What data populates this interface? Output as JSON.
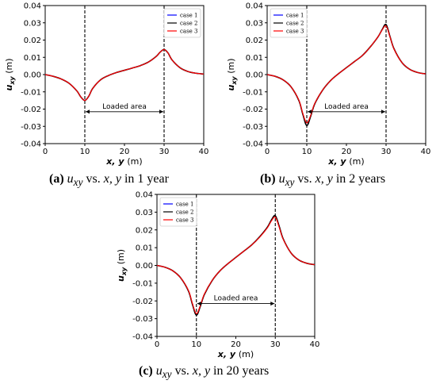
{
  "captions": [
    {
      "letter": "(a)",
      "text": "u_xy vs. x, y in 1 year",
      "pre": "u",
      "sub": "xy",
      "mid": " vs. ",
      "vars": "x, y",
      "post": " in 1 year"
    },
    {
      "letter": "(b)",
      "text": "u_xy vs. x, y in 2 years",
      "pre": "u",
      "sub": "xy",
      "mid": " vs. ",
      "vars": "x, y",
      "post": " in 2 years"
    },
    {
      "letter": "(c)",
      "text": "u_xy vs. x, y in 20 years",
      "pre": "u",
      "sub": "xy",
      "mid": " vs. ",
      "vars": "x, y",
      "post": " in 20 years"
    }
  ],
  "chart_data": [
    {
      "type": "line",
      "xlabel": "x, y",
      "xunit": "(m)",
      "ylabel": "u",
      "ylabel_sub": "xy",
      "yunit": "(m)",
      "xlim": [
        0,
        40
      ],
      "ylim": [
        -0.04,
        0.04
      ],
      "xticks": [
        "0",
        "10",
        "20",
        "30",
        "40"
      ],
      "yticks": [
        "0.04",
        "0.03",
        "0.02",
        "0.01",
        "0.00",
        "-0.01",
        "-0.02",
        "-0.03",
        "-0.04"
      ],
      "legend_position": "top-right",
      "annotation": "Loaded area",
      "vlines": [
        10,
        30
      ],
      "series": [
        {
          "name": "case 1",
          "color": "#0000ff",
          "x": [
            0,
            2,
            4,
            6,
            8,
            9,
            10,
            11,
            12,
            14,
            16,
            18,
            20,
            22,
            24,
            26,
            28,
            29,
            30,
            31,
            32,
            34,
            36,
            38,
            40
          ],
          "y": [
            0.0,
            -0.001,
            -0.0025,
            -0.005,
            -0.0095,
            -0.013,
            -0.015,
            -0.0125,
            -0.008,
            -0.003,
            -0.0005,
            0.0012,
            0.0025,
            0.0038,
            0.0052,
            0.0072,
            0.0105,
            0.013,
            0.0145,
            0.0125,
            0.0085,
            0.004,
            0.0018,
            0.0008,
            0.0003
          ]
        },
        {
          "name": "case 2",
          "color": "#000000",
          "x": [
            0,
            2,
            4,
            6,
            8,
            9,
            10,
            11,
            12,
            14,
            16,
            18,
            20,
            22,
            24,
            26,
            28,
            29,
            30,
            31,
            32,
            34,
            36,
            38,
            40
          ],
          "y": [
            0.0,
            -0.001,
            -0.0025,
            -0.005,
            -0.0095,
            -0.013,
            -0.015,
            -0.0125,
            -0.008,
            -0.003,
            -0.0005,
            0.0012,
            0.0025,
            0.0038,
            0.0052,
            0.0072,
            0.0105,
            0.013,
            0.0145,
            0.0125,
            0.0085,
            0.004,
            0.0018,
            0.0008,
            0.0003
          ]
        },
        {
          "name": "case 3",
          "color": "#ff0000",
          "x": [
            0,
            2,
            4,
            6,
            8,
            9,
            10,
            11,
            12,
            14,
            16,
            18,
            20,
            22,
            24,
            26,
            28,
            29,
            30,
            31,
            32,
            34,
            36,
            38,
            40
          ],
          "y": [
            0.0,
            -0.001,
            -0.0025,
            -0.005,
            -0.0095,
            -0.013,
            -0.015,
            -0.0125,
            -0.008,
            -0.003,
            -0.0005,
            0.0012,
            0.0025,
            0.0038,
            0.0052,
            0.0072,
            0.0105,
            0.013,
            0.0145,
            0.0125,
            0.0085,
            0.004,
            0.0018,
            0.0008,
            0.0003
          ]
        }
      ]
    },
    {
      "type": "line",
      "xlabel": "x, y",
      "xunit": "(m)",
      "ylabel": "u",
      "ylabel_sub": "xy",
      "yunit": "(m)",
      "xlim": [
        0,
        40
      ],
      "ylim": [
        -0.04,
        0.04
      ],
      "xticks": [
        "0",
        "10",
        "20",
        "30",
        "40"
      ],
      "yticks": [
        "0.04",
        "0.03",
        "0.02",
        "0.01",
        "0.00",
        "-0.01",
        "-0.02",
        "-0.03",
        "-0.04"
      ],
      "legend_position": "top-left",
      "annotation": "Loaded area",
      "vlines": [
        10,
        30
      ],
      "series": [
        {
          "name": "case 1",
          "color": "#0000ff",
          "x": [
            0,
            2,
            4,
            6,
            8,
            9,
            10,
            11,
            12,
            14,
            16,
            18,
            20,
            22,
            24,
            26,
            28,
            29,
            30,
            31,
            32,
            34,
            36,
            38,
            40
          ],
          "y": [
            0.0,
            -0.001,
            -0.003,
            -0.007,
            -0.015,
            -0.023,
            -0.0295,
            -0.024,
            -0.017,
            -0.009,
            -0.0035,
            0.0005,
            0.004,
            0.0075,
            0.011,
            0.016,
            0.022,
            0.026,
            0.029,
            0.022,
            0.015,
            0.007,
            0.003,
            0.0012,
            0.0004
          ]
        },
        {
          "name": "case 2",
          "color": "#000000",
          "x": [
            0,
            2,
            4,
            6,
            8,
            9,
            10,
            11,
            12,
            14,
            16,
            18,
            20,
            22,
            24,
            26,
            28,
            29,
            30,
            31,
            32,
            34,
            36,
            38,
            40
          ],
          "y": [
            0.0,
            -0.001,
            -0.003,
            -0.007,
            -0.015,
            -0.023,
            -0.0295,
            -0.024,
            -0.017,
            -0.009,
            -0.0035,
            0.0005,
            0.004,
            0.0075,
            0.011,
            0.016,
            0.022,
            0.026,
            0.029,
            0.022,
            0.015,
            0.007,
            0.003,
            0.0012,
            0.0004
          ]
        },
        {
          "name": "case 3",
          "color": "#ff0000",
          "x": [
            0,
            2,
            4,
            6,
            8,
            9,
            10,
            11,
            12,
            14,
            16,
            18,
            20,
            22,
            24,
            26,
            28,
            29,
            30,
            31,
            32,
            34,
            36,
            38,
            40
          ],
          "y": [
            0.0,
            -0.001,
            -0.003,
            -0.007,
            -0.0148,
            -0.0225,
            -0.028,
            -0.0235,
            -0.0168,
            -0.0089,
            -0.0035,
            0.0005,
            0.004,
            0.0075,
            0.011,
            0.016,
            0.022,
            0.0258,
            0.0282,
            0.0218,
            0.0148,
            0.007,
            0.003,
            0.0012,
            0.0004
          ]
        }
      ]
    },
    {
      "type": "line",
      "xlabel": "x, y",
      "xunit": "(m)",
      "ylabel": "u",
      "ylabel_sub": "xy",
      "yunit": "(m)",
      "xlim": [
        0,
        40
      ],
      "ylim": [
        -0.04,
        0.04
      ],
      "xticks": [
        "0",
        "10",
        "20",
        "30",
        "40"
      ],
      "yticks": [
        "0.04",
        "0.03",
        "0.02",
        "0.01",
        "0.00",
        "-0.01",
        "-0.02",
        "-0.03",
        "-0.04"
      ],
      "legend_position": "top-left",
      "annotation": "Loaded area",
      "vlines": [
        10,
        30
      ],
      "series": [
        {
          "name": "case 1",
          "color": "#0000ff",
          "x": [
            0,
            2,
            4,
            6,
            8,
            9,
            10,
            11,
            12,
            14,
            16,
            18,
            20,
            22,
            24,
            26,
            28,
            29,
            30,
            31,
            32,
            34,
            36,
            38,
            40
          ],
          "y": [
            0.0,
            -0.001,
            -0.003,
            -0.007,
            -0.0145,
            -0.022,
            -0.028,
            -0.023,
            -0.0165,
            -0.0085,
            -0.003,
            0.001,
            0.0045,
            0.008,
            0.0115,
            0.016,
            0.0215,
            0.0255,
            0.028,
            0.022,
            0.015,
            0.007,
            0.003,
            0.0012,
            0.0004
          ]
        },
        {
          "name": "case 2",
          "color": "#000000",
          "x": [
            0,
            2,
            4,
            6,
            8,
            9,
            10,
            11,
            12,
            14,
            16,
            18,
            20,
            22,
            24,
            26,
            28,
            29,
            30,
            31,
            32,
            34,
            36,
            38,
            40
          ],
          "y": [
            0.0,
            -0.001,
            -0.003,
            -0.007,
            -0.0145,
            -0.022,
            -0.028,
            -0.023,
            -0.0165,
            -0.0085,
            -0.003,
            0.001,
            0.0045,
            0.008,
            0.0115,
            0.016,
            0.0215,
            0.0255,
            0.028,
            0.022,
            0.015,
            0.007,
            0.003,
            0.0012,
            0.0004
          ]
        },
        {
          "name": "case 3",
          "color": "#ff0000",
          "x": [
            0,
            2,
            4,
            6,
            8,
            9,
            10,
            11,
            12,
            14,
            16,
            18,
            20,
            22,
            24,
            26,
            28,
            29,
            30,
            31,
            32,
            34,
            36,
            38,
            40
          ],
          "y": [
            0.0,
            -0.001,
            -0.003,
            -0.007,
            -0.0142,
            -0.0215,
            -0.0272,
            -0.0226,
            -0.0162,
            -0.0084,
            -0.003,
            0.001,
            0.0045,
            0.008,
            0.0115,
            0.0158,
            0.0212,
            0.025,
            0.0272,
            0.0215,
            0.0148,
            0.007,
            0.003,
            0.0012,
            0.0004
          ]
        }
      ]
    }
  ]
}
